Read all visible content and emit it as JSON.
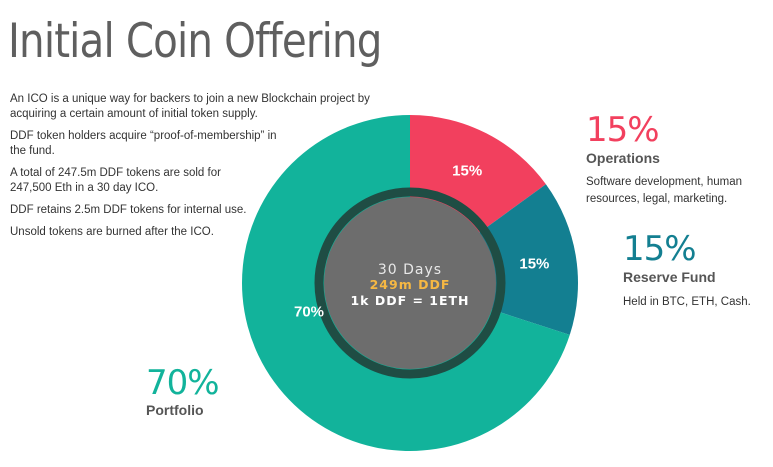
{
  "title": "Initial Coin Offering",
  "intro": {
    "p1": "An ICO is a unique way for backers to join a new Blockchain project by acquiring a certain amount of initial token supply.",
    "p2": "DDF token holders acquire “proof-of-membership” in the fund.",
    "p3": "A total of 247.5m DDF tokens are sold for 247,500 Eth in a 30 day ICO.",
    "p4": "DDF retains 2.5m DDF tokens for internal use.",
    "p5": "Unsold tokens are burned after the ICO."
  },
  "center": {
    "line1": "30 Days",
    "line2": "249m DDF",
    "line3": "1k DDF = 1ETH"
  },
  "legend": {
    "operations": {
      "pct": "15%",
      "name": "Operations",
      "desc1": "Software development, human",
      "desc2": "resources, legal, marketing."
    },
    "reserve": {
      "pct": "15%",
      "name": "Reserve Fund",
      "desc1": "Held in BTC, ETH, Cash."
    },
    "portfolio": {
      "pct": "70%",
      "name": "Portfolio"
    }
  },
  "colors": {
    "operations": "#f2405e",
    "reserve": "#137f91",
    "portfolio": "#12b39b",
    "center": "#6d6d6d",
    "ring": "#1f4d44",
    "center_accent": "#f6b843"
  },
  "chart_data": {
    "type": "pie",
    "variant": "donut",
    "categories": [
      "Operations",
      "Reserve Fund",
      "Portfolio"
    ],
    "values": [
      15,
      15,
      70
    ],
    "labels": [
      "15%",
      "15%",
      "70%"
    ],
    "start": "top",
    "direction": "clockwise"
  }
}
